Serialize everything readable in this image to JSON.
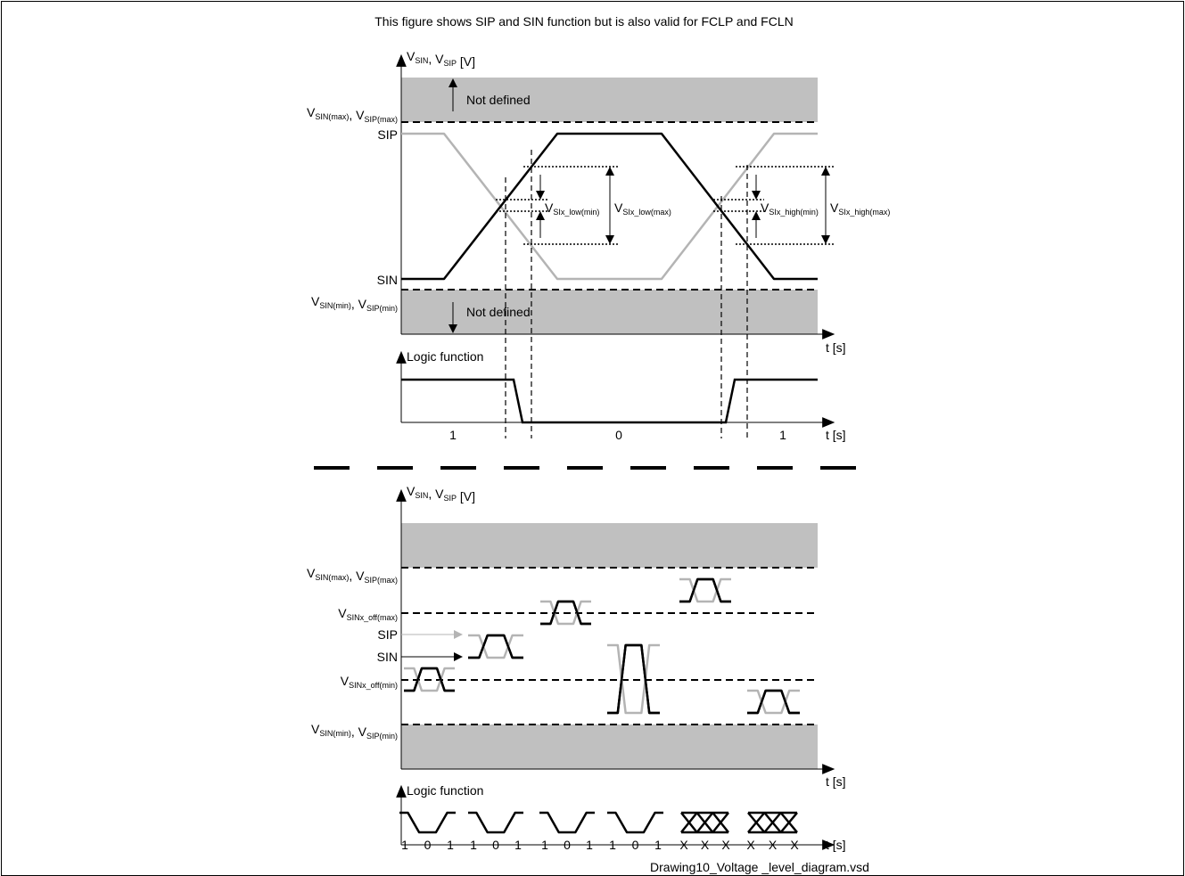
{
  "title": "This figure shows SIP and SIN function but is also valid for FCLP and FCLN",
  "top": {
    "axis_label_parts": [
      {
        "t": "V"
      },
      {
        "t": "SIN",
        "sub": true
      },
      {
        "t": ", V"
      },
      {
        "t": "SIP",
        "sub": true
      },
      {
        "t": " [V]"
      }
    ],
    "max_label_parts": [
      {
        "t": "V"
      },
      {
        "t": "SIN(max)",
        "sub": true
      },
      {
        "t": ", V"
      },
      {
        "t": "SIP(max)",
        "sub": true
      }
    ],
    "min_label_parts": [
      {
        "t": "V"
      },
      {
        "t": "SIN(min)",
        "sub": true
      },
      {
        "t": ", V"
      },
      {
        "t": "SIP(min)",
        "sub": true
      }
    ],
    "sip_label": "SIP",
    "sin_label": "SIN",
    "not_defined_upper": "Not defined",
    "not_defined_lower": "Not defined",
    "low_min_parts": [
      {
        "t": "V"
      },
      {
        "t": "SIx_low(min)",
        "sub": true
      }
    ],
    "low_max_parts": [
      {
        "t": "V"
      },
      {
        "t": "SIx_low(max)",
        "sub": true
      }
    ],
    "high_min_parts": [
      {
        "t": "V"
      },
      {
        "t": "SIx_high(min)",
        "sub": true
      }
    ],
    "high_max_parts": [
      {
        "t": "V"
      },
      {
        "t": "SIx_high(max)",
        "sub": true
      }
    ],
    "t_label": "t [s]",
    "logic_title": "Logic function",
    "logic_t_label": "t [s]",
    "logic_values": [
      "1",
      "0",
      "1"
    ]
  },
  "bottom": {
    "axis_label_parts": [
      {
        "t": "V"
      },
      {
        "t": "SIN",
        "sub": true
      },
      {
        "t": ", V"
      },
      {
        "t": "SIP",
        "sub": true
      },
      {
        "t": " [V]"
      }
    ],
    "max_label_parts": [
      {
        "t": "V"
      },
      {
        "t": "SIN(max)",
        "sub": true
      },
      {
        "t": ", V"
      },
      {
        "t": "SIP(max)",
        "sub": true
      }
    ],
    "off_max_parts": [
      {
        "t": "V"
      },
      {
        "t": "SINx_off(max)",
        "sub": true
      }
    ],
    "sip_label": "SIP",
    "sin_label": "SIN",
    "off_min_parts": [
      {
        "t": "V"
      },
      {
        "t": "SINx_off(min)",
        "sub": true
      }
    ],
    "min_label_parts": [
      {
        "t": "V"
      },
      {
        "t": "SIN(min)",
        "sub": true
      },
      {
        "t": ", V"
      },
      {
        "t": "SIP(min)",
        "sub": true
      }
    ],
    "t_label": "t [s]",
    "logic_title": "Logic function",
    "logic_t_label": "t [s]",
    "logic_values": [
      [
        "1",
        "0",
        "1"
      ],
      [
        "1",
        "0",
        "1"
      ],
      [
        "1",
        "0",
        "1"
      ],
      [
        "1",
        "0",
        "1"
      ],
      [
        "X",
        "X",
        "X"
      ],
      [
        "X",
        "X",
        "X"
      ]
    ]
  },
  "footer_file": "Drawing10_Voltage _level_diagram.vsd",
  "colors": {
    "band": "#c0c0c0",
    "sip": "#b4b4b4",
    "sin": "#000000"
  }
}
